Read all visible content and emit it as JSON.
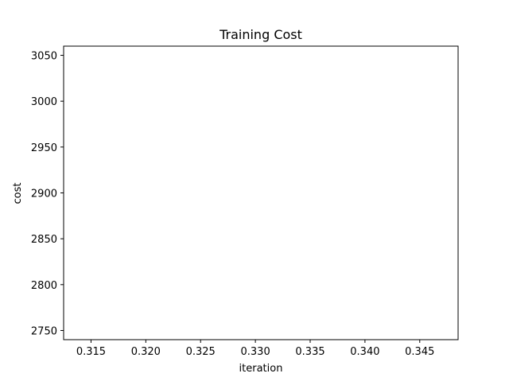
{
  "chart_data": {
    "type": "line",
    "title": "Training Cost",
    "xlabel": "iteration",
    "ylabel": "cost",
    "xlim": [
      0.3125,
      0.3485
    ],
    "ylim": [
      2740.0,
      3060.0
    ],
    "x_ticks": [
      {
        "value": 0.315,
        "label": "0.315"
      },
      {
        "value": 0.32,
        "label": "0.320"
      },
      {
        "value": 0.325,
        "label": "0.325"
      },
      {
        "value": 0.33,
        "label": "0.330"
      },
      {
        "value": 0.335,
        "label": "0.335"
      },
      {
        "value": 0.34,
        "label": "0.340"
      },
      {
        "value": 0.345,
        "label": "0.345"
      }
    ],
    "y_ticks": [
      {
        "value": 2750,
        "label": "2750"
      },
      {
        "value": 2800,
        "label": "2800"
      },
      {
        "value": 2850,
        "label": "2850"
      },
      {
        "value": 2900,
        "label": "2900"
      },
      {
        "value": 2950,
        "label": "2950"
      },
      {
        "value": 3000,
        "label": "3000"
      },
      {
        "value": 3050,
        "label": "3050"
      }
    ],
    "series": [],
    "grid": false,
    "legend": "none"
  }
}
